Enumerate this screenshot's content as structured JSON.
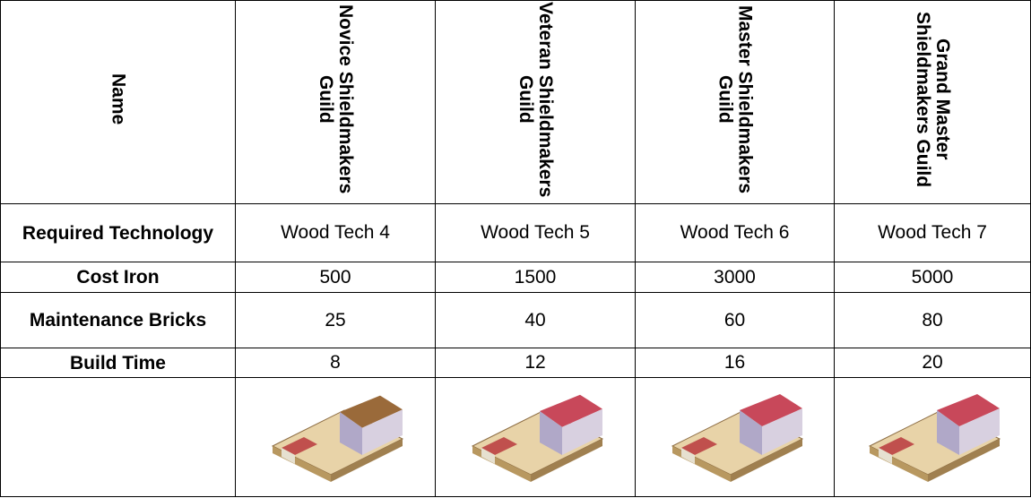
{
  "table": {
    "header": [
      "Name",
      "Novice Shieldmakers Guild",
      "Veteran Shieldmakers Guild",
      "Master Shieldmakers Guild",
      "Grand Master Shieldmakers Guild"
    ],
    "rows": [
      [
        "Required Technology",
        "Wood Tech 4",
        "Wood Tech 5",
        "Wood Tech 6",
        "Wood Tech 7"
      ],
      [
        "Cost Iron",
        500,
        1500,
        3000,
        5000
      ],
      [
        "Maintenance Bricks",
        25,
        40,
        60,
        80
      ],
      [
        "Build Time",
        8,
        12,
        16,
        20
      ]
    ]
  }
}
